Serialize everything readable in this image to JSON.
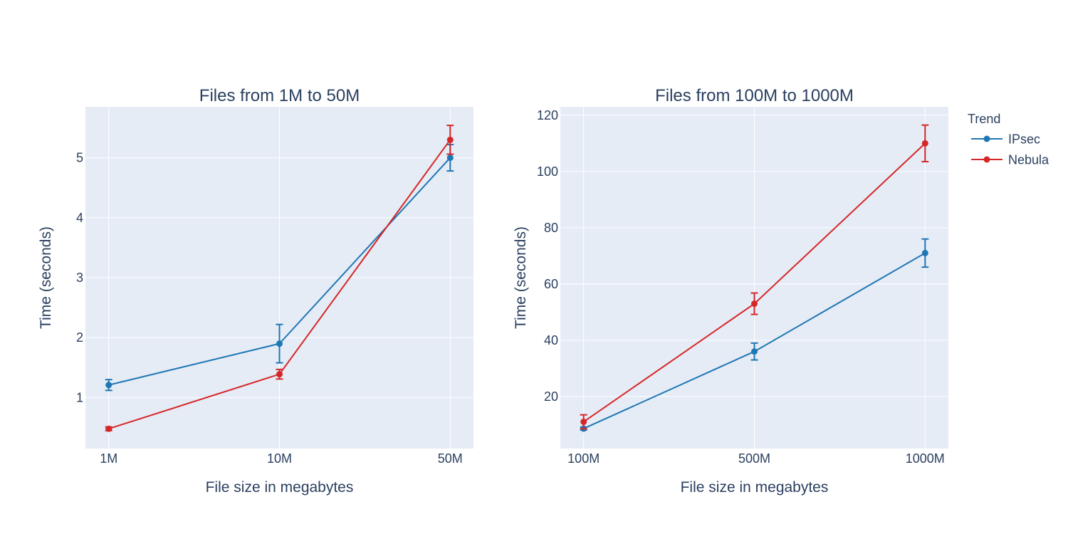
{
  "legend": {
    "title": "Trend",
    "items": [
      {
        "name": "IPsec",
        "color": "#1f77b4"
      },
      {
        "name": "Nebula",
        "color": "#d62728"
      }
    ]
  },
  "chart_data": [
    {
      "type": "line",
      "title": "Files from 1M to 50M",
      "xlabel": "File size in megabytes",
      "ylabel": "Time (seconds)",
      "categories": [
        "1M",
        "10M",
        "50M"
      ],
      "ylim": [
        0.15,
        5.85
      ],
      "yticks": [
        1,
        2,
        3,
        4,
        5
      ],
      "grid": true,
      "series": [
        {
          "name": "IPsec",
          "color": "#1f77b4",
          "values": [
            1.21,
            1.9,
            5.0
          ],
          "err": [
            0.09,
            0.32,
            0.22
          ]
        },
        {
          "name": "Nebula",
          "color": "#d62728",
          "values": [
            0.48,
            1.39,
            5.3
          ],
          "err": [
            0.03,
            0.08,
            0.24
          ]
        }
      ]
    },
    {
      "type": "line",
      "title": "Files from 100M to 1000M",
      "xlabel": "File size in megabytes",
      "ylabel": "Time (seconds)",
      "categories": [
        "100M",
        "500M",
        "1000M"
      ],
      "ylim": [
        1.5,
        123
      ],
      "yticks": [
        20,
        40,
        60,
        80,
        100,
        120
      ],
      "grid": true,
      "series": [
        {
          "name": "IPsec",
          "color": "#1f77b4",
          "values": [
            8.6,
            36.0,
            71.0
          ],
          "err": [
            0.5,
            3.0,
            5.0
          ]
        },
        {
          "name": "Nebula",
          "color": "#d62728",
          "values": [
            11.0,
            53.0,
            110.0
          ],
          "err": [
            2.5,
            3.8,
            6.5
          ]
        }
      ]
    }
  ]
}
